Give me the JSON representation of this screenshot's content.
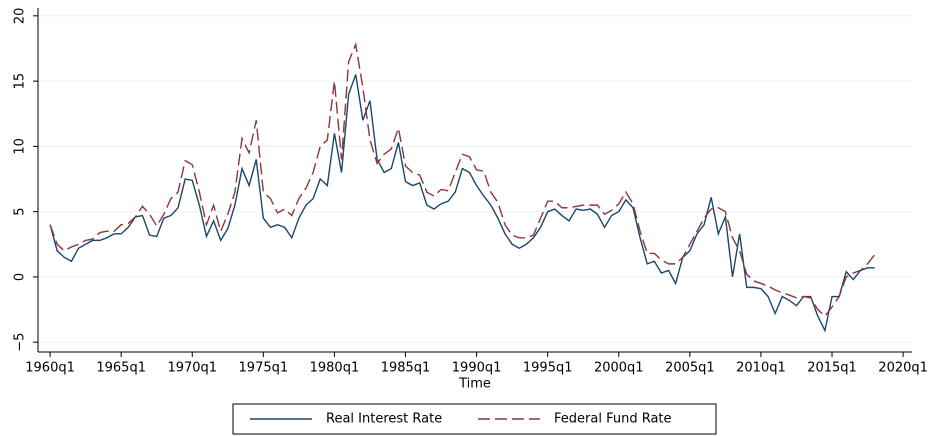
{
  "chart_data": {
    "type": "line",
    "xlabel": "Time",
    "x": [
      0,
      2,
      4,
      6,
      8,
      10,
      12,
      14,
      16,
      18,
      20,
      22,
      24,
      26,
      28,
      30,
      32,
      34,
      36,
      38,
      40,
      42,
      44,
      46,
      48,
      50,
      52,
      54,
      56,
      58,
      60,
      62,
      64,
      66,
      68,
      70,
      72,
      74,
      76,
      78,
      80,
      82,
      84,
      86,
      88,
      90,
      92,
      94,
      96,
      98,
      100,
      102,
      104,
      106,
      108,
      110,
      112,
      114,
      116,
      118,
      120,
      122,
      124,
      126,
      128,
      130,
      132,
      134,
      136,
      138,
      140,
      142,
      144,
      146,
      148,
      150,
      152,
      154,
      156,
      158,
      160,
      162,
      164,
      166,
      168,
      170,
      172,
      174,
      176,
      178,
      180,
      182,
      184,
      186,
      188,
      190,
      192,
      194,
      196,
      198,
      200,
      202,
      204,
      206,
      208,
      210,
      212,
      214,
      216,
      218,
      220,
      222,
      224,
      226,
      228,
      230,
      232
    ],
    "series": [
      {
        "name": "Real Interest Rate",
        "color": "#1a476f",
        "dash": "none",
        "values": [
          4.0,
          2.0,
          1.5,
          1.2,
          2.2,
          2.5,
          2.8,
          2.8,
          3.0,
          3.3,
          3.3,
          3.8,
          4.6,
          4.7,
          3.2,
          3.1,
          4.5,
          4.7,
          5.3,
          7.5,
          7.4,
          5.5,
          3.1,
          4.3,
          2.8,
          3.7,
          5.5,
          8.3,
          7.0,
          9.0,
          4.5,
          3.8,
          4.0,
          3.8,
          3.0,
          4.5,
          5.5,
          6.0,
          7.5,
          7.0,
          11.0,
          8.0,
          14.0,
          15.5,
          12.0,
          13.5,
          9.0,
          8.0,
          8.3,
          10.3,
          7.3,
          7.0,
          7.2,
          5.5,
          5.2,
          5.6,
          5.8,
          6.5,
          8.3,
          8.0,
          7.0,
          6.2,
          5.5,
          4.5,
          3.3,
          2.5,
          2.2,
          2.5,
          3.0,
          3.8,
          5.0,
          5.2,
          4.7,
          4.3,
          5.2,
          5.1,
          5.2,
          4.8,
          3.8,
          4.7,
          5.0,
          5.9,
          5.3,
          3.0,
          1.0,
          1.2,
          0.3,
          0.5,
          -0.5,
          1.5,
          2.0,
          3.3,
          4.0,
          6.1,
          3.3,
          4.6,
          0.0,
          3.3,
          -0.8,
          -0.8,
          -0.9,
          -1.5,
          -2.8,
          -1.5,
          -1.8,
          -2.2,
          -1.5,
          -1.5,
          -3.0,
          -4.1,
          -1.5,
          -1.5,
          0.4,
          -0.2,
          0.5,
          0.7,
          0.7
        ]
      },
      {
        "name": "Federal Fund Rate",
        "color": "#90353b",
        "dash": "12 5",
        "values": [
          4.0,
          2.5,
          2.0,
          2.3,
          2.5,
          2.8,
          2.9,
          3.4,
          3.5,
          3.5,
          4.0,
          4.1,
          4.6,
          5.4,
          4.8,
          3.9,
          4.8,
          6.0,
          6.5,
          8.9,
          8.6,
          6.5,
          4.0,
          5.5,
          3.5,
          4.8,
          6.5,
          10.6,
          9.5,
          12.0,
          6.5,
          6.0,
          4.9,
          5.2,
          4.7,
          6.0,
          6.8,
          8.0,
          10.0,
          10.5,
          15.0,
          9.0,
          16.5,
          17.8,
          14.5,
          10.5,
          8.7,
          9.4,
          9.8,
          11.4,
          8.5,
          8.0,
          7.8,
          6.5,
          6.2,
          6.7,
          6.6,
          8.0,
          9.4,
          9.2,
          8.2,
          8.1,
          6.5,
          5.7,
          4.0,
          3.2,
          3.0,
          3.0,
          3.2,
          4.5,
          5.8,
          5.8,
          5.3,
          5.3,
          5.4,
          5.5,
          5.5,
          5.5,
          4.8,
          5.1,
          5.6,
          6.5,
          5.6,
          3.5,
          1.8,
          1.8,
          1.3,
          1.0,
          1.0,
          1.5,
          2.5,
          3.5,
          4.5,
          5.2,
          5.3,
          5.0,
          3.0,
          2.0,
          0.2,
          -0.3,
          -0.5,
          -0.7,
          -1.0,
          -1.2,
          -1.4,
          -1.6,
          -1.5,
          -1.6,
          -2.5,
          -3.0,
          -2.3,
          -1.5,
          0.0,
          0.3,
          0.5,
          1.0,
          1.7
        ]
      }
    ],
    "xlim": [
      -3.4,
      242.5
    ],
    "ylim": [
      -5.75,
      20.6
    ],
    "xticks": [
      {
        "value": 0,
        "label": "1960q1"
      },
      {
        "value": 20,
        "label": "1965q1"
      },
      {
        "value": 40,
        "label": "1970q1"
      },
      {
        "value": 60,
        "label": "1975q1"
      },
      {
        "value": 80,
        "label": "1980q1"
      },
      {
        "value": 100,
        "label": "1985q1"
      },
      {
        "value": 120,
        "label": "1990q1"
      },
      {
        "value": 140,
        "label": "1995q1"
      },
      {
        "value": 160,
        "label": "2000q1"
      },
      {
        "value": 180,
        "label": "2005q1"
      },
      {
        "value": 200,
        "label": "2010q1"
      },
      {
        "value": 220,
        "label": "2015q1"
      },
      {
        "value": 240,
        "label": "2020q1"
      }
    ],
    "yticks": [
      {
        "value": -5,
        "label": "−5"
      },
      0,
      5,
      10,
      15,
      20
    ],
    "grid": true,
    "legend": "bottom"
  }
}
